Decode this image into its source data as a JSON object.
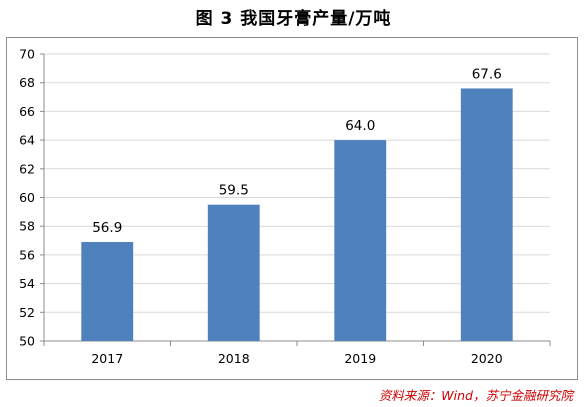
{
  "title": "图 3  我国牙膏产量/万吨",
  "source": "资料来源：Wind，苏宁金融研究院",
  "colors": {
    "bar": "#4f81bd",
    "grid": "#d9d9d9",
    "axis": "#8c8c8c",
    "source": "#d00000"
  },
  "chart_data": {
    "type": "bar",
    "categories": [
      "2017",
      "2018",
      "2019",
      "2020"
    ],
    "values": [
      56.9,
      59.5,
      64.0,
      67.6
    ],
    "data_labels": [
      "56.9",
      "59.5",
      "64.0",
      "67.6"
    ],
    "title": "图 3  我国牙膏产量/万吨",
    "xlabel": "",
    "ylabel": "",
    "ylim": [
      50,
      70
    ],
    "yticks": [
      50,
      52,
      54,
      56,
      58,
      60,
      62,
      64,
      66,
      68,
      70
    ],
    "grid": true,
    "legend": "none"
  }
}
